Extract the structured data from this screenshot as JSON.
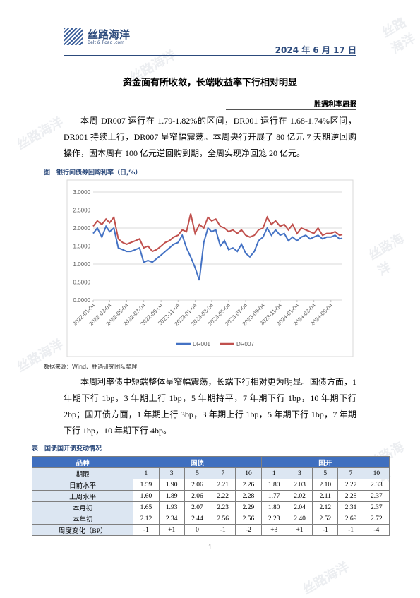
{
  "header": {
    "logo": "丝路海洋",
    "logo_sub": "Belt & Road .com",
    "date": "2024 年 6 月 17 日"
  },
  "title": "资金面有所收敛，长端收益率下行相对明显",
  "report_name": "胜遇利率周报",
  "paragraphs": [
    "本周 DR007 运行在 1.79-1.82%的区间，DR001 运行在 1.68-1.74%区间，DR001 持续上行，DR007 呈窄幅震荡。本周央行开展了 80 亿元 7 天期逆回购操作，因本周有 100 亿元逆回购到期，全周实现净回笼 20 亿元。",
    "本周利率债中短端整体呈窄幅震荡，长端下行相对更为明显。国债方面，1 年期下行 1bp，3 年期上行 1bp，5 年期持平，7 年期下行 1bp，10 年期下行 2bp；国开债方面，1 年期上行 3bp，3 年期上行 1bp，5 年期下行 1bp，7 年期下行 1bp，10 年期下行 4bp。"
  ],
  "figure": {
    "caption": "图　银行间债券回购利率（日,%）",
    "source": "数据来源：Wind、胜遇研究团队整理"
  },
  "chart_data": {
    "type": "line",
    "x": [
      "2022-01-04",
      "2022-01-19",
      "2022-02-04",
      "2022-02-19",
      "2022-03-04",
      "2022-03-19",
      "2022-04-04",
      "2022-04-19",
      "2022-05-04",
      "2022-05-19",
      "2022-06-04",
      "2022-06-19",
      "2022-07-04",
      "2022-07-19",
      "2022-08-04",
      "2022-08-19",
      "2022-09-04",
      "2022-09-19",
      "2022-10-04",
      "2022-10-19",
      "2022-11-04",
      "2022-11-19",
      "2022-12-04",
      "2022-12-19",
      "2023-01-04",
      "2023-01-19",
      "2023-02-04",
      "2023-02-19",
      "2023-03-04",
      "2023-03-19",
      "2023-04-04",
      "2023-04-19",
      "2023-05-04",
      "2023-05-19",
      "2023-06-04",
      "2023-06-19",
      "2023-07-04",
      "2023-07-19",
      "2023-08-04",
      "2023-08-19",
      "2023-09-04",
      "2023-09-19",
      "2023-10-04",
      "2023-10-19",
      "2023-11-04",
      "2023-11-19",
      "2023-12-04",
      "2023-12-19",
      "2024-01-04",
      "2024-01-19",
      "2024-02-04",
      "2024-02-19",
      "2024-03-04",
      "2024-03-19",
      "2024-04-04",
      "2024-04-19",
      "2024-05-04",
      "2024-05-19",
      "2024-06-04",
      "2024-06-14"
    ],
    "series": [
      {
        "name": "DR001",
        "color": "#4472c4",
        "values": [
          1.85,
          2.0,
          1.75,
          2.05,
          1.9,
          2.0,
          1.45,
          1.4,
          1.35,
          1.35,
          1.4,
          1.45,
          1.05,
          1.1,
          1.05,
          1.15,
          1.25,
          1.35,
          1.45,
          1.55,
          1.6,
          1.8,
          1.45,
          1.2,
          0.9,
          0.55,
          1.6,
          2.0,
          1.9,
          1.95,
          1.5,
          1.65,
          1.4,
          1.45,
          1.35,
          1.55,
          1.3,
          1.2,
          1.35,
          1.65,
          1.75,
          2.0,
          1.8,
          1.95,
          1.8,
          1.85,
          1.65,
          1.75,
          1.65,
          1.75,
          1.8,
          1.7,
          1.75,
          1.8,
          1.7,
          1.75,
          1.75,
          1.8,
          1.7,
          1.72
        ]
      },
      {
        "name": "DR007",
        "color": "#c0504d",
        "values": [
          2.05,
          2.2,
          2.1,
          2.25,
          2.15,
          2.3,
          1.7,
          1.6,
          1.55,
          1.6,
          1.65,
          1.7,
          1.45,
          1.5,
          1.35,
          1.4,
          1.5,
          1.6,
          1.65,
          1.75,
          1.8,
          1.95,
          1.9,
          2.4,
          1.85,
          2.1,
          2.0,
          2.3,
          2.2,
          2.25,
          2.05,
          2.0,
          1.9,
          1.95,
          1.85,
          1.95,
          1.8,
          1.75,
          1.8,
          1.95,
          2.0,
          2.3,
          2.1,
          2.2,
          2.05,
          2.1,
          1.95,
          2.1,
          1.85,
          2.0,
          1.95,
          1.9,
          1.85,
          2.0,
          1.8,
          1.85,
          1.85,
          1.9,
          1.8,
          1.82
        ]
      }
    ],
    "xlim": [
      "2022-01-04",
      "2024-06-14"
    ],
    "xticks": [
      "2022-01-04",
      "2022-03-04",
      "2022-05-04",
      "2022-07-04",
      "2022-09-04",
      "2022-11-04",
      "2023-01-04",
      "2023-03-04",
      "2023-05-04",
      "2023-07-04",
      "2023-09-04",
      "2023-11-04",
      "2024-01-04",
      "2024-03-04",
      "2024-05-04"
    ],
    "ylim": [
      0,
      3
    ],
    "yticks": [
      {
        "value": 0,
        "label": "0.0000"
      },
      {
        "value": 0.5,
        "label": "0.5000"
      },
      {
        "value": 1,
        "label": "1.0000"
      },
      {
        "value": 1.5,
        "label": "1.5000"
      },
      {
        "value": 2,
        "label": "2.0000"
      },
      {
        "value": 2.5,
        "label": "2.5000"
      },
      {
        "value": 3,
        "label": "3.0000"
      }
    ],
    "grid": true,
    "legend": "bottom"
  },
  "table": {
    "caption": "表　国债国开债变动情况",
    "header": [
      "品种",
      "国债",
      "国开"
    ],
    "rows": [
      [
        "期限",
        "1",
        "3",
        "5",
        "7",
        "10",
        "1",
        "3",
        "5",
        "7",
        "10"
      ],
      [
        "目前水平",
        "1.59",
        "1.90",
        "2.06",
        "2.21",
        "2.26",
        "1.80",
        "2.03",
        "2.10",
        "2.27",
        "2.33"
      ],
      [
        "上周水平",
        "1.60",
        "1.89",
        "2.06",
        "2.22",
        "2.28",
        "1.77",
        "2.02",
        "2.11",
        "2.28",
        "2.37"
      ],
      [
        "本月初",
        "1.65",
        "1.93",
        "2.07",
        "2.23",
        "2.29",
        "1.80",
        "2.04",
        "2.12",
        "2.31",
        "2.37"
      ],
      [
        "本年初",
        "2.12",
        "2.34",
        "2.44",
        "2.56",
        "2.56",
        "2.23",
        "2.40",
        "2.52",
        "2.69",
        "2.72"
      ],
      [
        "周度变化（BP）",
        "-1",
        "+1",
        "0",
        "-1",
        "-2",
        "+3",
        "+1",
        "-1",
        "-1",
        "-4"
      ]
    ]
  },
  "page_number": "1",
  "watermark": "丝路海洋"
}
